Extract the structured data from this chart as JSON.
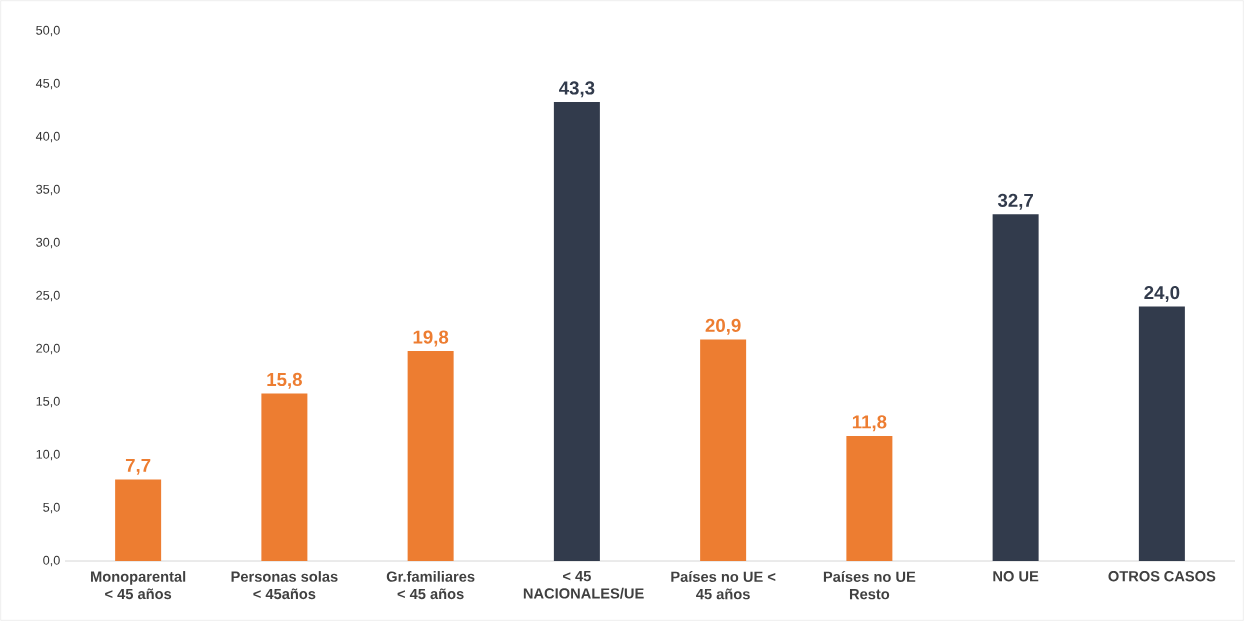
{
  "chart_data": {
    "type": "bar",
    "categories": [
      "Monoparental < 45 años",
      "Personas solas < 45años",
      "Gr.familiares < 45 años",
      "< 45 NACIONALES/UE",
      "Países no UE < 45 años",
      "Países no UE Resto",
      "NO UE",
      "OTROS CASOS"
    ],
    "values": [
      7.7,
      15.8,
      19.8,
      43.3,
      20.9,
      11.8,
      32.7,
      24.0
    ],
    "colors": [
      "#ed7d31",
      "#ed7d31",
      "#ed7d31",
      "#323b4c",
      "#ed7d31",
      "#ed7d31",
      "#323b4c",
      "#323b4c"
    ],
    "value_labels": [
      "7,7",
      "15,8",
      "19,8",
      "43,3",
      "20,9",
      "11,8",
      "32,7",
      "24,0"
    ],
    "ylim": [
      0,
      50
    ],
    "yticks": [
      {
        "value": 0,
        "label": "0,0"
      },
      {
        "value": 5,
        "label": "5,0"
      },
      {
        "value": 10,
        "label": "10,0"
      },
      {
        "value": 15,
        "label": "15,0"
      },
      {
        "value": 20,
        "label": "20,0"
      },
      {
        "value": 25,
        "label": "25,0"
      },
      {
        "value": 30,
        "label": "30,0"
      },
      {
        "value": 35,
        "label": "35,0"
      },
      {
        "value": 40,
        "label": "40,0"
      },
      {
        "value": 45,
        "label": "45,0"
      },
      {
        "value": 50,
        "label": "50,0"
      }
    ],
    "grid": false
  }
}
